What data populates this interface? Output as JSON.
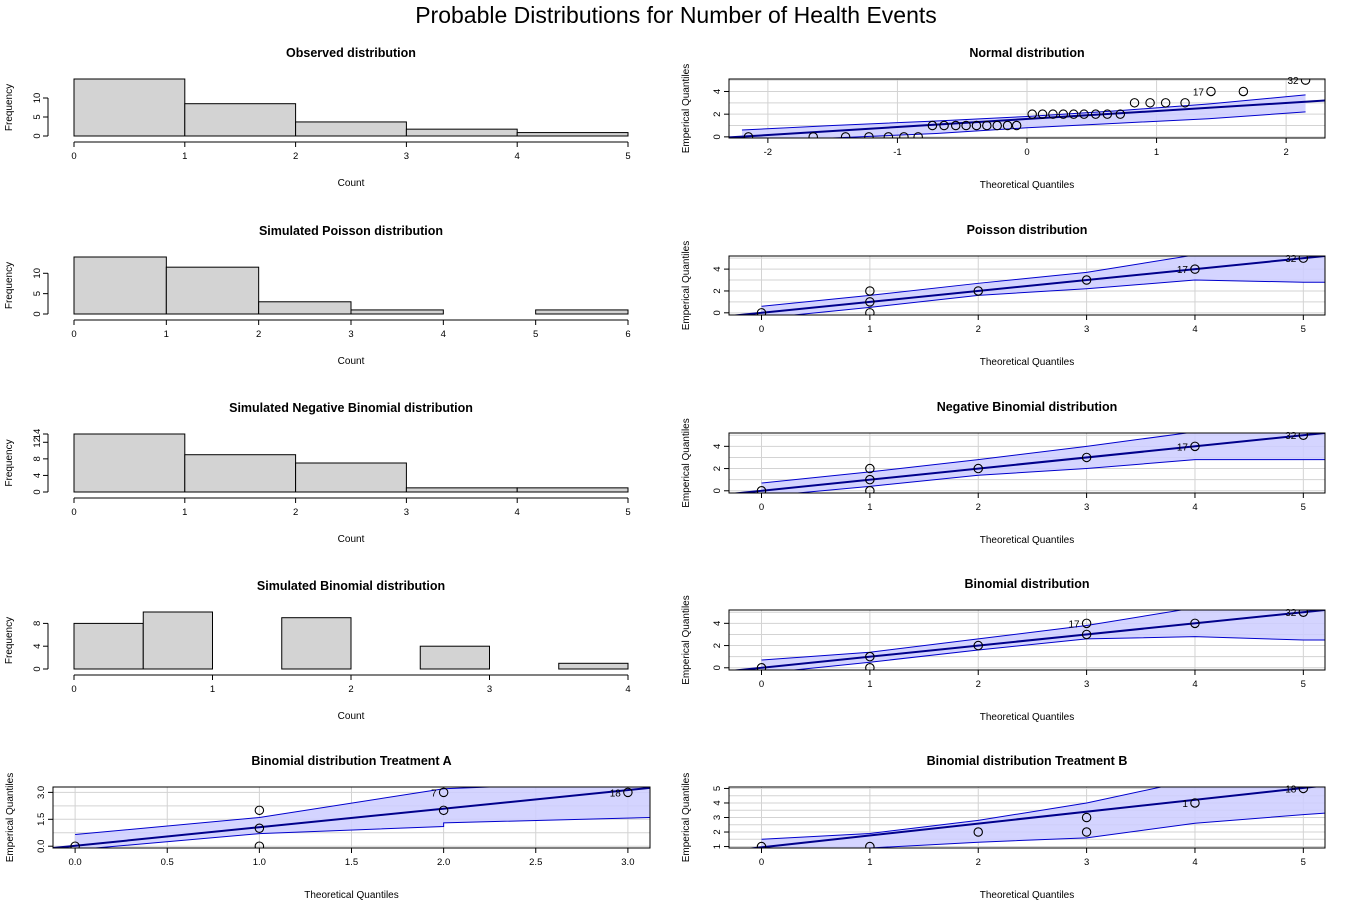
{
  "main_title": "Probable Distributions for Number of Health Events",
  "colors": {
    "bar_fill": "#d3d3d3",
    "band_fill": "#ccccff",
    "band_line": "#0000cd",
    "fit_line": "#00008b",
    "grid": "#d3d3d3"
  },
  "chart_data": [
    {
      "type": "bar",
      "title": "Observed distribution",
      "xlabel": "Count",
      "ylabel": "Frequency",
      "bins": [
        [
          0,
          1,
          15
        ],
        [
          1,
          2,
          8.5
        ],
        [
          2,
          3,
          3.7
        ],
        [
          3,
          4,
          1.8
        ],
        [
          4,
          5,
          0.9
        ]
      ],
      "xlim": [
        0,
        5
      ],
      "ylim": [
        0,
        15
      ],
      "xticks": [
        0,
        1,
        2,
        3,
        4,
        5
      ],
      "yticks": [
        0,
        5,
        10
      ]
    },
    {
      "type": "scatter",
      "title": "Normal distribution",
      "xlabel": "Theoretical Quantiles",
      "ylabel": "Emperical Quantiles",
      "xlim": [
        -2.3,
        2.3
      ],
      "ylim": [
        -0.1,
        5.1
      ],
      "xticks": [
        -2,
        -1,
        0,
        1,
        2
      ],
      "yticks": [
        0,
        2,
        4
      ],
      "grid": true,
      "points": [
        [
          -2.15,
          0
        ],
        [
          -1.65,
          0
        ],
        [
          -1.4,
          0
        ],
        [
          -1.22,
          0
        ],
        [
          -1.07,
          0
        ],
        [
          -0.95,
          0
        ],
        [
          -0.84,
          0
        ],
        [
          -0.73,
          1
        ],
        [
          -0.64,
          1
        ],
        [
          -0.55,
          1
        ],
        [
          -0.47,
          1
        ],
        [
          -0.39,
          1
        ],
        [
          -0.31,
          1
        ],
        [
          -0.23,
          1
        ],
        [
          -0.15,
          1
        ],
        [
          -0.08,
          1
        ],
        [
          0.04,
          2
        ],
        [
          0.12,
          2
        ],
        [
          0.2,
          2
        ],
        [
          0.28,
          2
        ],
        [
          0.36,
          2
        ],
        [
          0.44,
          2
        ],
        [
          0.53,
          2
        ],
        [
          0.62,
          2
        ],
        [
          0.72,
          2
        ],
        [
          0.83,
          3
        ],
        [
          0.95,
          3
        ],
        [
          1.07,
          3
        ],
        [
          1.22,
          3
        ],
        [
          1.42,
          4
        ],
        [
          1.67,
          4
        ],
        [
          2.15,
          5
        ]
      ],
      "labels": [
        {
          "x": 1.42,
          "y": 4,
          "text": "17"
        },
        {
          "x": 2.15,
          "y": 5,
          "text": "32"
        }
      ],
      "fit": [
        [
          -2.3,
          -0.05
        ],
        [
          2.3,
          3.2
        ]
      ],
      "upper": [
        [
          -2.2,
          0.6
        ],
        [
          -1.5,
          1.0
        ],
        [
          -0.7,
          1.4
        ],
        [
          0,
          1.8
        ],
        [
          0.7,
          2.3
        ],
        [
          1.4,
          2.9
        ],
        [
          2.15,
          3.7
        ]
      ],
      "lower": [
        [
          -2.2,
          -0.5
        ],
        [
          -1.5,
          -0.1
        ],
        [
          -0.7,
          0.3
        ],
        [
          0,
          0.8
        ],
        [
          0.7,
          1.2
        ],
        [
          1.4,
          1.6
        ],
        [
          2.15,
          2.2
        ]
      ]
    },
    {
      "type": "bar",
      "title": "Simulated Poisson distribution",
      "xlabel": "Count",
      "ylabel": "Frequency",
      "bins": [
        [
          0,
          1,
          14
        ],
        [
          1,
          2,
          11.5
        ],
        [
          2,
          3,
          3
        ],
        [
          3,
          4,
          1
        ],
        [
          4,
          5,
          0
        ],
        [
          5,
          6,
          1
        ]
      ],
      "xlim": [
        0,
        6
      ],
      "ylim": [
        0,
        14
      ],
      "xticks": [
        0,
        1,
        2,
        3,
        4,
        5,
        6
      ],
      "yticks": [
        0,
        5,
        10
      ]
    },
    {
      "type": "scatter",
      "title": "Poisson distribution",
      "xlabel": "Theoretical Quantiles",
      "ylabel": "Emperical Quantiles",
      "xlim": [
        -0.3,
        5.2
      ],
      "ylim": [
        -0.2,
        5.2
      ],
      "xticks": [
        0,
        1,
        2,
        3,
        4,
        5
      ],
      "yticks": [
        0,
        2,
        4
      ],
      "grid": true,
      "points": [
        [
          0,
          0
        ],
        [
          1,
          0
        ],
        [
          1,
          1
        ],
        [
          1,
          2
        ],
        [
          2,
          2
        ],
        [
          3,
          3
        ],
        [
          4,
          4
        ],
        [
          5,
          5
        ]
      ],
      "labels": [
        {
          "x": 4,
          "y": 4,
          "text": "17"
        },
        {
          "x": 5,
          "y": 5,
          "text": "32"
        }
      ],
      "fit": [
        [
          -0.3,
          -0.3
        ],
        [
          5.2,
          5.2
        ]
      ],
      "upper": [
        [
          0,
          0.6
        ],
        [
          1,
          1.6
        ],
        [
          2,
          2.7
        ],
        [
          3,
          3.7
        ],
        [
          4,
          5.3
        ],
        [
          5,
          5.6
        ],
        [
          5.2,
          5.7
        ]
      ],
      "lower": [
        [
          0,
          -0.5
        ],
        [
          1,
          0.5
        ],
        [
          2,
          1.6
        ],
        [
          3,
          2.2
        ],
        [
          4,
          3.0
        ],
        [
          5,
          2.8
        ],
        [
          5.2,
          2.8
        ]
      ]
    },
    {
      "type": "bar",
      "title": "Simulated Negative Binomial distribution",
      "xlabel": "Count",
      "ylabel": "Frequency",
      "bins": [
        [
          0,
          1,
          14
        ],
        [
          1,
          2,
          9
        ],
        [
          2,
          3,
          7
        ],
        [
          3,
          4,
          1
        ],
        [
          4,
          5,
          1
        ]
      ],
      "xlim": [
        0,
        5
      ],
      "ylim": [
        0,
        14
      ],
      "xticks": [
        0,
        1,
        2,
        3,
        4,
        5
      ],
      "yticks": [
        0,
        4,
        8,
        12,
        14
      ]
    },
    {
      "type": "scatter",
      "title": "Negative Binomial distribution",
      "xlabel": "Theoretical Quantiles",
      "ylabel": "Emperical Quantiles",
      "xlim": [
        -0.3,
        5.2
      ],
      "ylim": [
        -0.2,
        5.2
      ],
      "xticks": [
        0,
        1,
        2,
        3,
        4,
        5
      ],
      "yticks": [
        0,
        2,
        4
      ],
      "grid": true,
      "points": [
        [
          0,
          0
        ],
        [
          1,
          0
        ],
        [
          1,
          1
        ],
        [
          1,
          2
        ],
        [
          2,
          2
        ],
        [
          3,
          3
        ],
        [
          4,
          4
        ],
        [
          5,
          5
        ]
      ],
      "labels": [
        {
          "x": 4,
          "y": 4,
          "text": "17"
        },
        {
          "x": 5,
          "y": 5,
          "text": "32"
        }
      ],
      "fit": [
        [
          -0.3,
          -0.3
        ],
        [
          5.2,
          5.2
        ]
      ],
      "upper": [
        [
          0,
          0.7
        ],
        [
          1,
          1.7
        ],
        [
          2,
          2.8
        ],
        [
          3,
          4.0
        ],
        [
          4,
          5.3
        ],
        [
          5,
          5.6
        ],
        [
          5.2,
          5.7
        ]
      ],
      "lower": [
        [
          0,
          -0.5
        ],
        [
          1,
          0.4
        ],
        [
          2,
          1.4
        ],
        [
          3,
          2.0
        ],
        [
          4,
          2.8
        ],
        [
          5,
          2.8
        ],
        [
          5.2,
          2.8
        ]
      ]
    },
    {
      "type": "bar",
      "title": "Simulated Binomial distribution",
      "xlabel": "Count",
      "ylabel": "Frequency",
      "bins": [
        [
          0,
          0.5,
          8
        ],
        [
          0.5,
          1,
          10
        ],
        [
          1.5,
          2,
          9
        ],
        [
          2.5,
          3,
          4
        ],
        [
          3.5,
          4,
          1
        ]
      ],
      "xlim": [
        0,
        4
      ],
      "ylim": [
        0,
        10
      ],
      "xticks": [
        0,
        1,
        2,
        3,
        4
      ],
      "yticks": [
        0,
        4,
        8
      ]
    },
    {
      "type": "scatter",
      "title": "Binomial distribution",
      "xlabel": "Theoretical Quantiles",
      "ylabel": "Emperical Quantiles",
      "xlim": [
        -0.3,
        5.2
      ],
      "ylim": [
        -0.2,
        5.2
      ],
      "xticks": [
        0,
        1,
        2,
        3,
        4,
        5
      ],
      "yticks": [
        0,
        2,
        4
      ],
      "grid": true,
      "points": [
        [
          0,
          0
        ],
        [
          1,
          0
        ],
        [
          1,
          1
        ],
        [
          2,
          2
        ],
        [
          3,
          3
        ],
        [
          3,
          4
        ],
        [
          4,
          4
        ],
        [
          5,
          5
        ]
      ],
      "labels": [
        {
          "x": 3,
          "y": 4,
          "text": "17"
        },
        {
          "x": 5,
          "y": 5,
          "text": "32"
        }
      ],
      "fit": [
        [
          -0.3,
          -0.3
        ],
        [
          5.2,
          5.2
        ]
      ],
      "upper": [
        [
          0,
          0.7
        ],
        [
          1,
          1.4
        ],
        [
          2,
          2.6
        ],
        [
          3,
          3.8
        ],
        [
          4,
          5.4
        ],
        [
          5,
          5.6
        ],
        [
          5.2,
          5.7
        ]
      ],
      "lower": [
        [
          0,
          -0.5
        ],
        [
          1,
          0.5
        ],
        [
          2,
          1.6
        ],
        [
          3,
          2.6
        ],
        [
          4,
          2.8
        ],
        [
          5,
          2.5
        ],
        [
          5.2,
          2.5
        ]
      ]
    },
    {
      "type": "scatter",
      "title": "Binomial distribution Treatment A",
      "xlabel": "Theoretical Quantiles",
      "ylabel": "Emperical Quantiles",
      "xlim": [
        -0.12,
        3.12
      ],
      "ylim": [
        -0.1,
        3.3
      ],
      "xticks": [
        0.0,
        0.5,
        1.0,
        1.5,
        2.0,
        2.5,
        3.0
      ],
      "xtick_labels": [
        "0.0",
        "0.5",
        "1.0",
        "1.5",
        "2.0",
        "2.5",
        "3.0"
      ],
      "yticks": [
        0,
        1.5,
        3.0
      ],
      "ytick_labels": [
        "0.0",
        "1.5",
        "3.0"
      ],
      "grid": true,
      "points": [
        [
          0,
          0
        ],
        [
          1,
          0
        ],
        [
          1,
          1
        ],
        [
          1,
          2
        ],
        [
          2,
          2
        ],
        [
          2,
          3
        ],
        [
          3,
          3
        ]
      ],
      "labels": [
        {
          "x": 2,
          "y": 3,
          "text": "7"
        },
        {
          "x": 3,
          "y": 3,
          "text": "18"
        }
      ],
      "fit": [
        [
          -0.12,
          -0.1
        ],
        [
          3.12,
          3.25
        ]
      ],
      "upper": [
        [
          0,
          0.65
        ],
        [
          1,
          1.6
        ],
        [
          2,
          3.2
        ],
        [
          2.5,
          3.4
        ],
        [
          3.12,
          3.4
        ]
      ],
      "lower": [
        [
          0,
          -0.2
        ],
        [
          1,
          0.7
        ],
        [
          2,
          1.1
        ],
        [
          2,
          1.3
        ],
        [
          3.12,
          1.6
        ]
      ]
    },
    {
      "type": "scatter",
      "title": "Binomial distribution Treatment B",
      "xlabel": "Theoretical Quantiles",
      "ylabel": "Emperical Quantiles",
      "xlim": [
        -0.3,
        5.2
      ],
      "ylim": [
        0.9,
        5.1
      ],
      "xticks": [
        0,
        1,
        2,
        3,
        4,
        5
      ],
      "yticks": [
        1,
        2,
        3,
        4,
        5
      ],
      "grid": true,
      "points": [
        [
          0,
          1
        ],
        [
          1,
          1
        ],
        [
          2,
          2
        ],
        [
          3,
          2
        ],
        [
          3,
          3
        ],
        [
          4,
          4
        ],
        [
          5,
          5
        ]
      ],
      "labels": [
        {
          "x": 4,
          "y": 4,
          "text": "1"
        },
        {
          "x": 5,
          "y": 5,
          "text": "18"
        }
      ],
      "fit": [
        [
          -0.3,
          0.7
        ],
        [
          5.2,
          5.2
        ]
      ],
      "upper": [
        [
          0,
          1.5
        ],
        [
          1,
          1.9
        ],
        [
          2,
          2.8
        ],
        [
          3,
          4.0
        ],
        [
          4,
          5.6
        ],
        [
          5.2,
          5.6
        ]
      ],
      "lower": [
        [
          0,
          0.5
        ],
        [
          1,
          0.9
        ],
        [
          2,
          1.3
        ],
        [
          3,
          1.6
        ],
        [
          4,
          2.6
        ],
        [
          5,
          3.2
        ],
        [
          5.2,
          3.3
        ]
      ]
    }
  ]
}
